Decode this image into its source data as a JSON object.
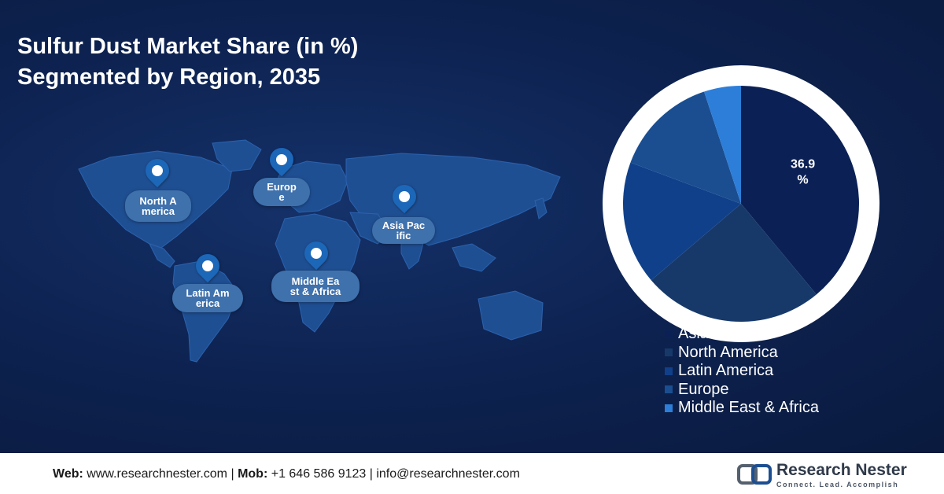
{
  "title_line1": "Sulfur Dust Market Share (in %)",
  "title_line2": "Segmented by Region, 2035",
  "map_labels": {
    "north_america": "North America",
    "europe": "Europe",
    "asia_pacific": "Asia Pacific",
    "latin_america": "Latin America",
    "middle_east_africa": "Middle East & Africa"
  },
  "chart_data": {
    "type": "pie",
    "title": "Sulfur Dust Market Share (in %) Segmented by Region, 2035",
    "slices": [
      {
        "label": "Asia Pacific",
        "value": 36.9,
        "color": "#0b2156"
      },
      {
        "label": "North America",
        "value": 23.5,
        "color": "#17396a"
      },
      {
        "label": "Latin America",
        "value": 16.0,
        "color": "#10408a"
      },
      {
        "label": "Europe",
        "value": 13.5,
        "color": "#1a4e91"
      },
      {
        "label": "Middle East & Africa",
        "value": 4.8,
        "color": "#2d7ed8"
      }
    ],
    "data_labels": [
      {
        "slice": "Asia Pacific",
        "text": "36.9 %"
      }
    ],
    "legend_position": "bottom-right"
  },
  "footer": {
    "web_label": "Web:",
    "web_value": "www.researchnester.com",
    "sep": "|",
    "mob_label": "Mob:",
    "mob_value": "+1 646 586 9123",
    "email": "info@researchnester.com"
  },
  "logo": {
    "name": "Research Nester",
    "tagline": "Connect. Lead. Accomplish"
  },
  "colors": {
    "background": "#0d2250",
    "map_land": "#1f4f93",
    "pin": "#1c67b8",
    "bubble": "#3f71ad"
  }
}
